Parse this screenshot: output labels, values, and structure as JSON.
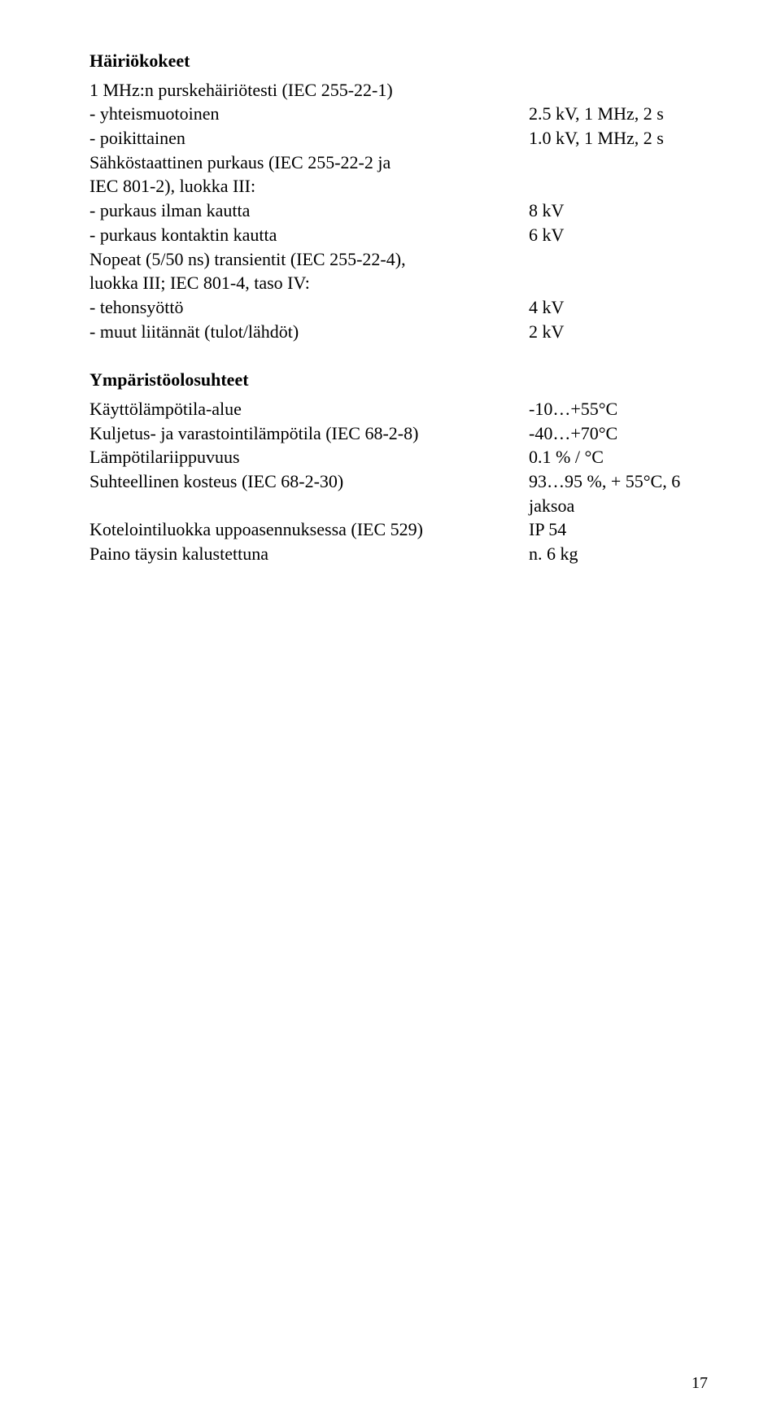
{
  "section1": {
    "heading": "Häiriökokeet",
    "lines": [
      {
        "label": "1 MHz:n purskehäiriötesti (IEC 255-22-1)",
        "value": ""
      },
      {
        "label": "- yhteismuotoinen",
        "value": "2.5 kV, 1 MHz, 2 s"
      },
      {
        "label": "- poikittainen",
        "value": "1.0 kV, 1 MHz, 2 s"
      },
      {
        "label": "Sähköstaattinen purkaus (IEC 255-22-2 ja",
        "value": ""
      },
      {
        "label": "IEC 801-2), luokka III:",
        "value": ""
      },
      {
        "label": "- purkaus ilman kautta",
        "value": "8 kV"
      },
      {
        "label": "- purkaus kontaktin kautta",
        "value": "6 kV"
      },
      {
        "label": "Nopeat (5/50 ns) transientit (IEC 255-22-4),",
        "value": ""
      },
      {
        "label": "luokka III; IEC 801-4, taso IV:",
        "value": ""
      },
      {
        "label": "- tehonsyöttö",
        "value": "4 kV"
      },
      {
        "label": "- muut liitännät (tulot/lähdöt)",
        "value": "2 kV"
      }
    ]
  },
  "section2": {
    "heading": "Ympäristöolosuhteet",
    "lines": [
      {
        "label": "Käyttölämpötila-alue",
        "value": "-10…+55°C"
      },
      {
        "label": "Kuljetus- ja varastointilämpötila (IEC 68-2-8)",
        "value": "-40…+70°C"
      },
      {
        "label": "Lämpötilariippuvuus",
        "value": "0.1 % / °C"
      },
      {
        "label": "Suhteellinen kosteus (IEC 68-2-30)",
        "value": "93…95 %, + 55°C, 6 jaksoa"
      },
      {
        "label": "Kotelointiluokka uppoasennuksessa (IEC 529)",
        "value": "IP 54"
      },
      {
        "label": "Paino täysin kalustettuna",
        "value": "n. 6 kg"
      }
    ]
  },
  "pageNumber": "17"
}
